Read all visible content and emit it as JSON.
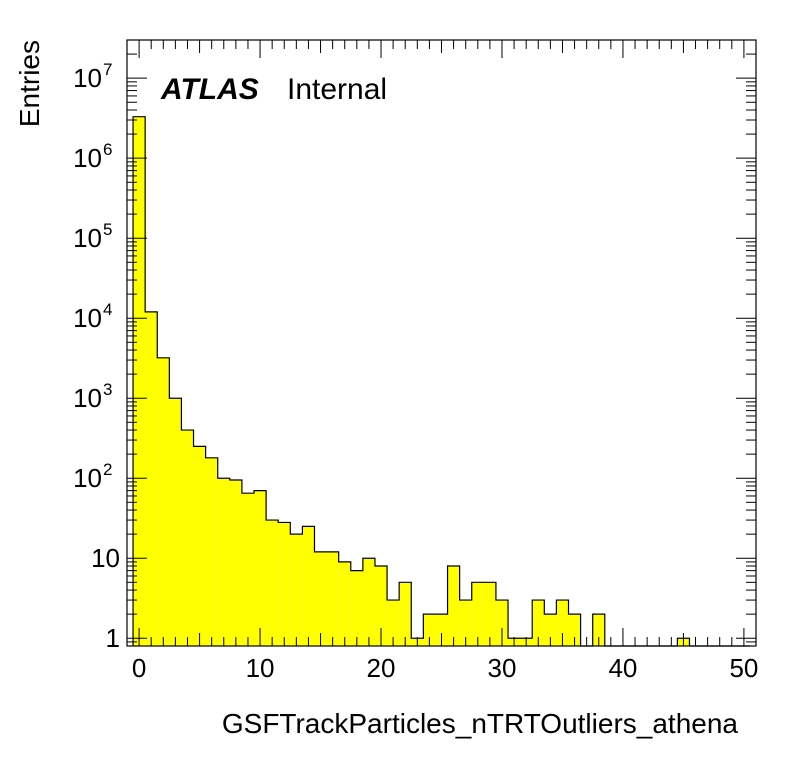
{
  "chart_data": {
    "type": "histogram",
    "xlabel": "GSFTrackParticles_nTRTOutliers_athena",
    "ylabel": "Entries",
    "annotation": {
      "experiment": "ATLAS",
      "status": "Internal"
    },
    "xlim": [
      -1,
      51
    ],
    "ylim": [
      0.8,
      30000000
    ],
    "yscale": "log",
    "grid": false,
    "legend": "none",
    "bar_color": "#ffff00",
    "edge_color": "#000000",
    "bin_width": 1,
    "x_ticks": [
      0,
      10,
      20,
      30,
      40,
      50
    ],
    "x_tick_labels": [
      "0",
      "10",
      "20",
      "30",
      "40",
      "50"
    ],
    "y_ticks": [
      {
        "value": 1,
        "base": "1",
        "exp": ""
      },
      {
        "value": 10,
        "base": "10",
        "exp": ""
      },
      {
        "value": 100,
        "base": "10",
        "exp": "2"
      },
      {
        "value": 1000,
        "base": "10",
        "exp": "3"
      },
      {
        "value": 10000,
        "base": "10",
        "exp": "4"
      },
      {
        "value": 100000,
        "base": "10",
        "exp": "5"
      },
      {
        "value": 1000000,
        "base": "10",
        "exp": "6"
      },
      {
        "value": 10000000,
        "base": "10",
        "exp": "7"
      }
    ],
    "bin_edges": [
      -0.5,
      50.5
    ],
    "counts": [
      3300000,
      12000,
      3200,
      1000,
      400,
      250,
      180,
      100,
      95,
      65,
      70,
      30,
      28,
      20,
      25,
      12,
      12,
      9,
      7,
      10,
      8,
      3,
      5,
      1,
      2,
      2,
      8,
      3,
      5,
      5,
      3,
      1,
      1,
      3,
      2,
      3,
      2,
      0,
      2,
      0,
      0,
      0,
      0,
      0,
      0,
      1,
      0,
      0,
      0,
      0,
      0
    ]
  }
}
